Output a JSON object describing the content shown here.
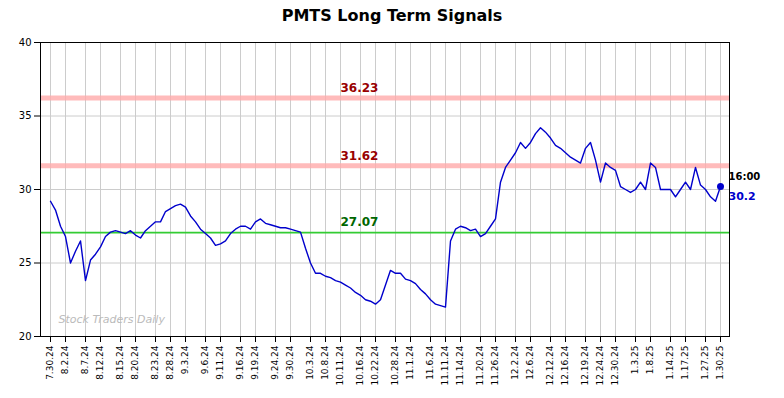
{
  "chart_data": {
    "type": "line",
    "title": "PMTS Long Term Signals",
    "categories": [
      "7.30.24",
      null,
      null,
      "8.2.24",
      null,
      null,
      null,
      "8.7.24",
      null,
      null,
      "8.12.24",
      null,
      null,
      null,
      "8.15.24",
      null,
      null,
      "8.20.24",
      null,
      null,
      null,
      "8.23.24",
      null,
      null,
      "8.28.24",
      null,
      null,
      "9.3.24",
      null,
      null,
      null,
      "9.6.24",
      null,
      null,
      "9.11.24",
      null,
      null,
      null,
      "9.16.24",
      null,
      null,
      "9.19.24",
      null,
      null,
      null,
      "9.24.24",
      null,
      null,
      "9.30.24",
      null,
      null,
      null,
      "10.3.24",
      null,
      null,
      "10.8.24",
      null,
      null,
      "10.11.24",
      null,
      null,
      null,
      "10.16.24",
      null,
      null,
      "10.22.24",
      null,
      null,
      null,
      "10.28.24",
      null,
      null,
      "11.1.24",
      null,
      null,
      null,
      "11.6.24",
      null,
      null,
      "11.11.24",
      null,
      null,
      "11.14.24",
      null,
      null,
      null,
      "11.20.24",
      null,
      null,
      "11.26.24",
      null,
      null,
      null,
      "12.2.24",
      null,
      null,
      "12.6.24",
      null,
      null,
      null,
      "12.12.24",
      null,
      null,
      "12.16.24",
      null,
      null,
      null,
      "12.19.24",
      null,
      null,
      "12.24.24",
      null,
      null,
      "12.30.24",
      null,
      null,
      null,
      "1.3.25",
      null,
      null,
      "1.8.25",
      null,
      null,
      null,
      "1.14.25",
      null,
      null,
      "1.17.25",
      null,
      null,
      null,
      "1.27.25",
      null,
      null,
      "1.30.25"
    ],
    "values": [
      29.2,
      28.6,
      27.5,
      26.8,
      25.0,
      25.8,
      26.5,
      23.8,
      25.2,
      25.6,
      26.1,
      26.8,
      27.1,
      27.2,
      27.1,
      27.0,
      27.2,
      26.9,
      26.7,
      27.2,
      27.5,
      27.8,
      27.8,
      28.5,
      28.7,
      28.9,
      29.0,
      28.8,
      28.2,
      27.8,
      27.3,
      27.0,
      26.7,
      26.2,
      26.3,
      26.5,
      27.0,
      27.3,
      27.5,
      27.5,
      27.3,
      27.8,
      28.0,
      27.7,
      27.6,
      27.5,
      27.4,
      27.4,
      27.3,
      27.2,
      27.1,
      26.0,
      25.0,
      24.3,
      24.3,
      24.1,
      24.0,
      23.8,
      23.7,
      23.5,
      23.3,
      23.0,
      22.8,
      22.5,
      22.4,
      22.2,
      22.5,
      23.5,
      24.5,
      24.3,
      24.3,
      23.9,
      23.8,
      23.6,
      23.2,
      22.9,
      22.5,
      22.2,
      22.1,
      22.0,
      26.5,
      27.3,
      27.5,
      27.4,
      27.2,
      27.3,
      26.8,
      27.0,
      27.5,
      28.0,
      30.5,
      31.5,
      32.0,
      32.5,
      33.2,
      32.8,
      33.2,
      33.8,
      34.2,
      33.9,
      33.5,
      33.0,
      32.8,
      32.5,
      32.2,
      32.0,
      31.8,
      32.8,
      33.2,
      32.0,
      30.5,
      31.8,
      31.5,
      31.3,
      30.2,
      30.0,
      29.8,
      30.0,
      30.5,
      30.0,
      31.8,
      31.5,
      30.0,
      30.0,
      30.0,
      29.5,
      30.0,
      30.5,
      30.0,
      31.5,
      30.3,
      30.0,
      29.5,
      29.2,
      30.2
    ],
    "color": "#0000cc",
    "ylim": [
      20,
      40
    ],
    "yticks": [
      20,
      25,
      30,
      35,
      40
    ],
    "grid": true,
    "reference_lines": [
      {
        "value": 27.07,
        "label": "27.07",
        "color": "#33cc33",
        "label_color": "#006600"
      },
      {
        "value": 31.62,
        "label": "31.62",
        "color": "#ffaaaa",
        "label_color": "#990000"
      },
      {
        "value": 36.23,
        "label": "36.23",
        "color": "#ffaaaa",
        "label_color": "#990000"
      }
    ],
    "last_point": {
      "label": "16:00",
      "value_label": "30.2",
      "color": "#0000cc"
    },
    "watermark": "Stock Traders Daily"
  }
}
